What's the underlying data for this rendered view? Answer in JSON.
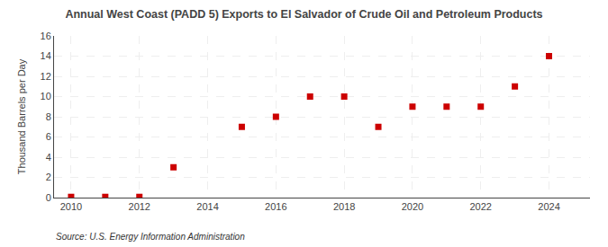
{
  "chart_data": {
    "type": "scatter",
    "title": "Annual West Coast (PADD 5) Exports to El Salvador of Crude Oil and Petroleum Products",
    "ylabel": "Thousand Barrels per Day",
    "annotations": [
      "Source: U.S. Energy Information Administration"
    ],
    "x": [
      2010,
      2011,
      2012,
      2013,
      2015,
      2016,
      2017,
      2018,
      2019,
      2020,
      2021,
      2022,
      2023,
      2024
    ],
    "values": [
      0.07,
      0.07,
      0.07,
      3.0,
      7.0,
      8.0,
      10.0,
      10.0,
      7.0,
      9.0,
      9.0,
      9.0,
      11.0,
      14.0
    ],
    "color": "#cc0000",
    "marker": "square",
    "xlim": [
      2009.5,
      2025.2
    ],
    "xticks": [
      2010,
      2012,
      2014,
      2016,
      2018,
      2020,
      2022,
      2024
    ],
    "ylim": [
      0,
      16
    ],
    "yticks": [
      0,
      2,
      4,
      6,
      8,
      10,
      12,
      14,
      16
    ],
    "grid": true
  }
}
